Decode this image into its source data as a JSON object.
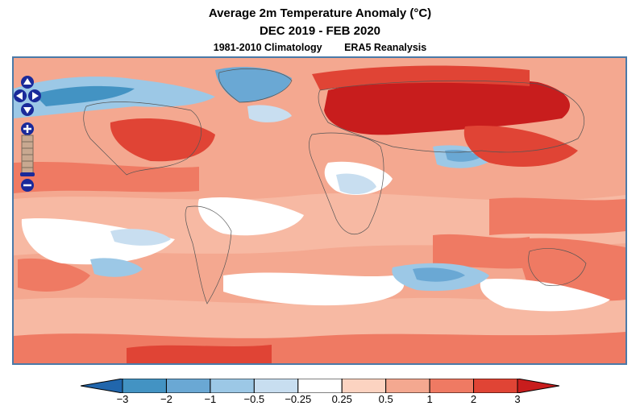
{
  "header": {
    "title": "Average 2m Temperature Anomaly (°C)",
    "period": "DEC 2019 - FEB 2020",
    "climatology": "1981-2010 Climatology",
    "source": "ERA5 Reanalysis"
  },
  "map": {
    "variable": "2m temperature anomaly",
    "projection": "equirectangular",
    "ocean_base_color": "#f4a890",
    "controls": [
      "pan-up",
      "pan-left",
      "pan-right",
      "pan-down",
      "zoom-in",
      "zoom-slider",
      "zoom-out"
    ]
  },
  "legend": {
    "labels": [
      "−3",
      "−2",
      "−1",
      "−0.5",
      "−0.25",
      "0.25",
      "0.5",
      "1",
      "2",
      "3"
    ],
    "bins": [
      {
        "range": "< -3",
        "color": "#2166ac"
      },
      {
        "range": "-3 to -2",
        "color": "#4393c3"
      },
      {
        "range": "-2 to -1",
        "color": "#6aa8d4"
      },
      {
        "range": "-1 to -0.5",
        "color": "#9cc8e6"
      },
      {
        "range": "-0.5 to -0.25",
        "color": "#c8def0"
      },
      {
        "range": "-0.25 to 0.25",
        "color": "#ffffff"
      },
      {
        "range": "0.25 to 0.5",
        "color": "#fcd3c1"
      },
      {
        "range": "0.5 to 1",
        "color": "#f4a890"
      },
      {
        "range": "1 to 2",
        "color": "#ef7a63"
      },
      {
        "range": "2 to 3",
        "color": "#e04435"
      },
      {
        "range": "> 3",
        "color": "#c81d1d"
      }
    ]
  }
}
